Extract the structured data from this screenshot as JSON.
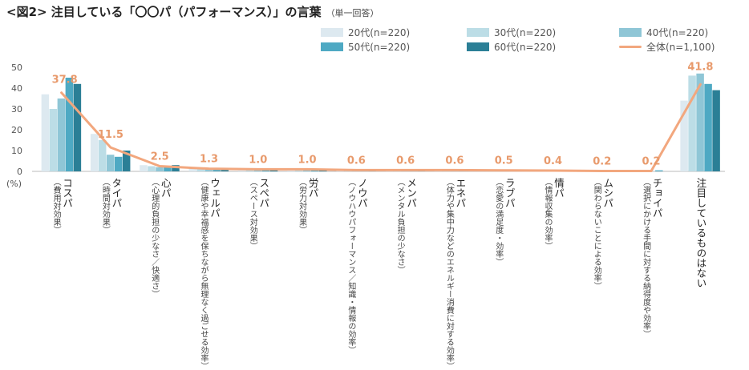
{
  "page": {
    "title": "<図2> 注目している「〇〇パ（パフォーマンス）」の言葉",
    "subtitle": "（単一回答）"
  },
  "colors": {
    "s20": "#dde9f0",
    "s30": "#bcdde6",
    "s40": "#8fc6d6",
    "s50": "#4ea9c3",
    "s60": "#2b7f96",
    "total": "#f2a77e",
    "total_label": "#e89a6c",
    "axis": "#bbbbbb",
    "tick_text": "#555555"
  },
  "chart_data": {
    "type": "bar",
    "ylim": [
      0,
      50
    ],
    "yticks": [
      0,
      10,
      20,
      30,
      40,
      50
    ],
    "yunit": "(%)",
    "grid": false,
    "legend_position": "top-right",
    "categories": [
      {
        "name": "コスパ",
        "note": "（費用対効果）"
      },
      {
        "name": "タイパ",
        "note": "（時間対効果）"
      },
      {
        "name": "心パ",
        "note": "（心理的負担の少なさ／快適さ）"
      },
      {
        "name": "ウェルパ",
        "note": "（健康や幸福感を保ちながら無理なく過ごせる効率）"
      },
      {
        "name": "スペパ",
        "note": "（スペース対効果）"
      },
      {
        "name": "労パ",
        "note": "（労力対効果）"
      },
      {
        "name": "ノウパ",
        "note": "（ノウハウパフォーマンス／知識・情報の効率）"
      },
      {
        "name": "メンパ",
        "note": "（メンタル負担の少なさ）"
      },
      {
        "name": "エネパ",
        "note": "（体力や集中力などのエネルギー消費に対する効率）"
      },
      {
        "name": "ラブパ",
        "note": "（恋愛の満足度・効率）"
      },
      {
        "name": "情パ",
        "note": "（情報収集の効率）"
      },
      {
        "name": "ムシパ",
        "note": "（関わらないことによる効率）"
      },
      {
        "name": "チョイパ",
        "note": "（選択にかける手間に対する納得度や効率）"
      },
      {
        "name": "注目しているものはない",
        "note": ""
      }
    ],
    "series": [
      {
        "name": "20代(n=220)",
        "values": [
          37,
          18,
          3,
          1.5,
          1,
          1,
          0.5,
          0.5,
          0.5,
          0.5,
          0.3,
          0.2,
          0,
          34
        ]
      },
      {
        "name": "30代(n=220)",
        "values": [
          30,
          15,
          2.5,
          1.5,
          1,
          1,
          0.6,
          0.6,
          0.6,
          0.5,
          0.4,
          0.2,
          0,
          46
        ]
      },
      {
        "name": "40代(n=220)",
        "values": [
          35,
          8,
          2,
          1,
          1,
          1,
          0.5,
          0.5,
          0.5,
          0.5,
          0.4,
          0.2,
          0,
          47
        ]
      },
      {
        "name": "50代(n=220)",
        "values": [
          45,
          7,
          2,
          1,
          1,
          1,
          0.6,
          0.6,
          0.6,
          0.5,
          0.4,
          0.2,
          0.5,
          42
        ]
      },
      {
        "name": "60代(n=220)",
        "values": [
          42,
          10,
          3,
          1.5,
          1,
          1,
          0.7,
          0.7,
          0.7,
          0.5,
          0.5,
          0.2,
          0,
          39
        ]
      }
    ],
    "line": {
      "name": "全体(n=1,100)",
      "values": [
        37.8,
        11.5,
        2.5,
        1.3,
        1.0,
        1.0,
        0.6,
        0.6,
        0.6,
        0.5,
        0.4,
        0.2,
        0.2,
        41.8
      ],
      "labels": [
        "37.8",
        "11.5",
        "2.5",
        "1.3",
        "1.0",
        "1.0",
        "0.6",
        "0.6",
        "0.6",
        "0.5",
        "0.4",
        "0.2",
        "0.2",
        "41.8"
      ]
    }
  }
}
